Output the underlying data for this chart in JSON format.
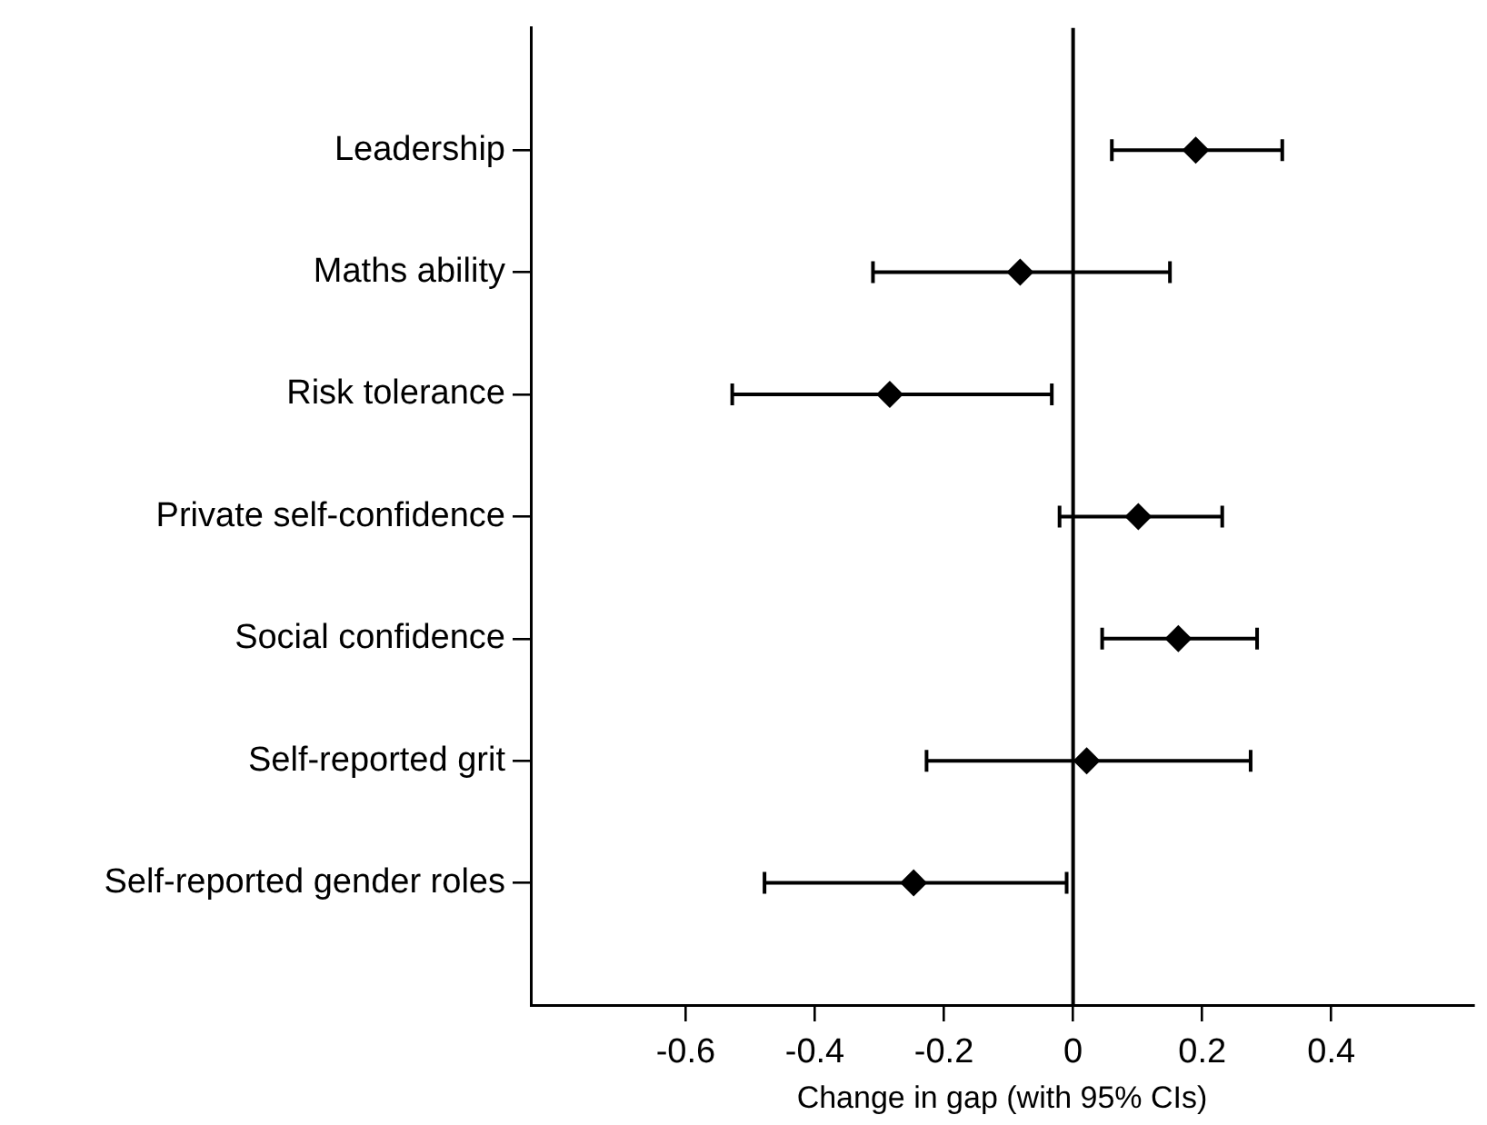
{
  "chart_data": {
    "type": "scatter",
    "orientation": "horizontal",
    "xlabel": "Change in gap (with 95% CIs)",
    "categories": [
      "Leadership",
      "Maths ability",
      "Risk tolerance",
      "Private self-confidence",
      "Social confidence",
      "Self-reported grit",
      "Self-reported gender roles"
    ],
    "values": [
      0.19,
      -0.082,
      -0.284,
      0.101,
      0.163,
      0.021,
      -0.247
    ],
    "errors": [
      [
        0.06,
        0.324
      ],
      [
        -0.31,
        0.15
      ],
      [
        -0.528,
        -0.033
      ],
      [
        -0.021,
        0.231
      ],
      [
        0.045,
        0.285
      ],
      [
        -0.227,
        0.275
      ],
      [
        -0.478,
        -0.01
      ]
    ],
    "color": "#000000",
    "marker": "diamond",
    "grid": false,
    "xlim": [
      -0.84,
      0.62
    ],
    "xticks": [
      -0.6,
      -0.4,
      -0.2,
      0,
      0.2,
      0.4
    ],
    "ref_lines": [
      {
        "axis": "x",
        "value": 0,
        "color": "#000000"
      }
    ]
  }
}
